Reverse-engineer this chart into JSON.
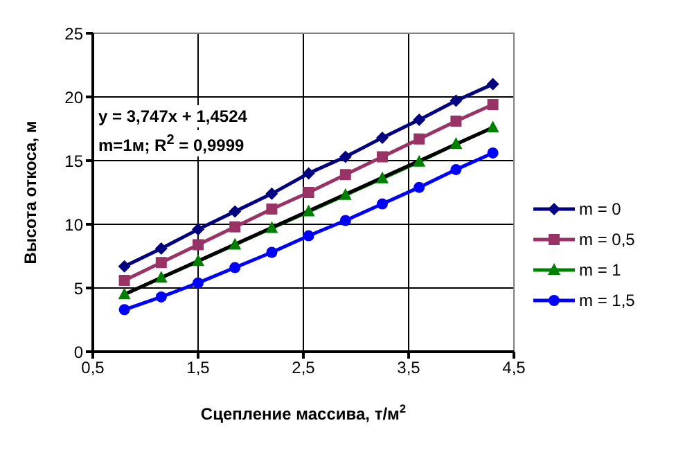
{
  "chart_data": {
    "type": "line",
    "xlabel": "Сцепление массива, т/м$^{2}$",
    "ylabel": "Высота откоса, м",
    "x": [
      0.8,
      1.15,
      1.5,
      1.85,
      2.2,
      2.55,
      2.9,
      3.25,
      3.6,
      3.95,
      4.3
    ],
    "series": [
      {
        "name": "m = 0",
        "color": "#000080",
        "marker": "diamond",
        "values": [
          6.7,
          8.1,
          9.6,
          11.0,
          12.4,
          14.0,
          15.3,
          16.8,
          18.2,
          19.7,
          21.0
        ]
      },
      {
        "name": "m = 0,5",
        "color": "#993366",
        "marker": "square",
        "values": [
          5.6,
          7.0,
          8.4,
          9.8,
          11.2,
          12.5,
          13.9,
          15.3,
          16.7,
          18.1,
          19.4
        ]
      },
      {
        "name": "m = 1",
        "color": "#008000",
        "marker": "triangle",
        "values": [
          4.5,
          5.8,
          7.1,
          8.4,
          9.7,
          11.0,
          12.3,
          13.6,
          14.9,
          16.3,
          17.6
        ]
      },
      {
        "name": "m = 1,5",
        "color": "#0000ff",
        "marker": "circle",
        "values": [
          3.3,
          4.3,
          5.4,
          6.6,
          7.8,
          9.1,
          10.3,
          11.6,
          12.9,
          14.3,
          15.6
        ]
      },
      {
        "type": "line",
        "color": "#000000",
        "marker": "none",
        "x": [
          0.8,
          4.3
        ],
        "values": [
          4.5,
          17.6
        ]
      }
    ],
    "xlim": [
      0.5,
      4.5
    ],
    "xticks": [
      {
        "value": 0.5,
        "label": "0,5"
      },
      {
        "value": 1.5,
        "label": "1,5"
      },
      {
        "value": 2.5,
        "label": "2,5"
      },
      {
        "value": 3.5,
        "label": "3,5"
      },
      {
        "value": 4.5,
        "label": "4,5"
      }
    ],
    "ylim": [
      0,
      25
    ],
    "yticks": [
      0,
      5,
      10,
      15,
      20,
      25
    ],
    "grid": true,
    "legend": "right",
    "annotations": [
      "y = 3,747x + 1,4524",
      "m=1м; R$^{2}$ = 0,9999"
    ]
  }
}
